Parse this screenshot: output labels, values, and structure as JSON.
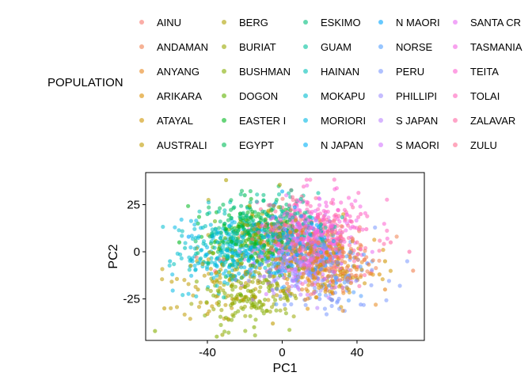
{
  "chart_data": {
    "type": "scatter",
    "title": "",
    "xlabel": "PC1",
    "ylabel": "PC2",
    "xlim": [
      -73,
      76
    ],
    "ylim": [
      -47,
      42
    ],
    "xticks": [
      -40,
      0,
      40
    ],
    "yticks": [
      -25,
      0,
      25
    ],
    "grid": false,
    "legend_title": "POPULATION",
    "legend_position": "top",
    "series": [
      {
        "name": "AINU",
        "color": "#F8766D"
      },
      {
        "name": "ANDAMAN",
        "color": "#F07F4E"
      },
      {
        "name": "ANYANG",
        "color": "#E7861B"
      },
      {
        "name": "ARIKARA",
        "color": "#DB8E00"
      },
      {
        "name": "ATAYAL",
        "color": "#CF9400"
      },
      {
        "name": "AUSTRALI",
        "color": "#C09B00"
      },
      {
        "name": "BERG",
        "color": "#AFA100"
      },
      {
        "name": "BURIAT",
        "color": "#9AA800"
      },
      {
        "name": "BUSHMAN",
        "color": "#83AD00"
      },
      {
        "name": "DOGON",
        "color": "#5EB300"
      },
      {
        "name": "EASTER I",
        "color": "#00B81F"
      },
      {
        "name": "EGYPT",
        "color": "#00BC59"
      },
      {
        "name": "ESKIMO",
        "color": "#00BE7D"
      },
      {
        "name": "GUAM",
        "color": "#00C19C"
      },
      {
        "name": "HAINAN",
        "color": "#00C0B8"
      },
      {
        "name": "MOKAPU",
        "color": "#00BDD0"
      },
      {
        "name": "MORIORI",
        "color": "#00B8E5"
      },
      {
        "name": "N JAPAN",
        "color": "#00B0F6"
      },
      {
        "name": "N MAORI",
        "color": "#00A5FF"
      },
      {
        "name": "NORSE",
        "color": "#529EFF"
      },
      {
        "name": "PERU",
        "color": "#7997FF"
      },
      {
        "name": "PHILLIPI",
        "color": "#9E8FFF"
      },
      {
        "name": "S JAPAN",
        "color": "#BB83FF"
      },
      {
        "name": "S MAORI",
        "color": "#D376FF"
      },
      {
        "name": "SANTA CR",
        "color": "#E76BF3"
      },
      {
        "name": "TASMANIA",
        "color": "#F464E2"
      },
      {
        "name": "TEITA",
        "color": "#FD61D1"
      },
      {
        "name": "TOLAI",
        "color": "#FF62BC"
      },
      {
        "name": "ZALAVAR",
        "color": "#FF67A4"
      },
      {
        "name": "ZULU",
        "color": "#FF6C91"
      }
    ],
    "points": [
      {
        "group": "EGYPT",
        "x": -45,
        "y": 15
      },
      {
        "group": "BERG",
        "x": -30,
        "y": 38
      },
      {
        "group": "EASTER I",
        "x": -55,
        "y": 5
      },
      {
        "group": "HAINAN",
        "x": -52,
        "y": 2
      },
      {
        "group": "MOKAPU",
        "x": -60,
        "y": -5
      },
      {
        "group": "BUSHMAN",
        "x": -68,
        "y": -42
      },
      {
        "group": "AUSTRALI",
        "x": -63,
        "y": -30
      },
      {
        "group": "BUSHMAN",
        "x": -35,
        "y": -45
      },
      {
        "group": "BURIAT",
        "x": -32,
        "y": -44
      },
      {
        "group": "AUSTRALI",
        "x": -40,
        "y": -33
      },
      {
        "group": "BUSHMAN",
        "x": -15,
        "y": -40
      },
      {
        "group": "AUSTRALI",
        "x": -5,
        "y": -38
      },
      {
        "group": "ZALAVAR",
        "x": 68,
        "y": 0
      },
      {
        "group": "ANDAMAN",
        "x": 70,
        "y": -10
      },
      {
        "group": "ZALAVAR",
        "x": 58,
        "y": 5
      },
      {
        "group": "TOLAI",
        "x": 42,
        "y": 20
      },
      {
        "group": "TOLAI",
        "x": 45,
        "y": 12
      },
      {
        "group": "PERU",
        "x": 42,
        "y": -28
      },
      {
        "group": "PERU",
        "x": 20,
        "y": -25
      },
      {
        "group": "N JAPAN",
        "x": 0,
        "y": 32
      },
      {
        "group": "EGYPT",
        "x": -20,
        "y": 30
      },
      {
        "group": "GUAM",
        "x": 10,
        "y": 28
      },
      {
        "group": "ESKIMO",
        "x": -10,
        "y": 27
      },
      {
        "group": "S MAORI",
        "x": 20,
        "y": 28
      },
      {
        "group": "TEITA",
        "x": 30,
        "y": 22
      },
      {
        "group": "DOGON",
        "x": -22,
        "y": -23
      },
      {
        "group": "BURIAT",
        "x": -10,
        "y": -28
      },
      {
        "group": "ARIKARA",
        "x": 52,
        "y": -12
      },
      {
        "group": "ATAYAL",
        "x": 55,
        "y": -5
      },
      {
        "group": "MORIORI",
        "x": -48,
        "y": -5
      },
      {
        "group": "N MAORI",
        "x": -50,
        "y": 8
      },
      {
        "group": "ESKIMO",
        "x": -40,
        "y": 20
      },
      {
        "group": "AUSTRALI",
        "x": -45,
        "y": -20
      },
      {
        "group": "BERG",
        "x": -35,
        "y": -15
      },
      {
        "group": "ANYANG",
        "x": 55,
        "y": -20
      },
      {
        "group": "ZULU",
        "x": 40,
        "y": 5
      },
      {
        "group": "SANTA CR",
        "x": 30,
        "y": 10
      },
      {
        "group": "PHILLIPI",
        "x": 35,
        "y": -15
      },
      {
        "group": "S JAPAN",
        "x": 10,
        "y": -5
      },
      {
        "group": "NORSE",
        "x": 25,
        "y": -18
      }
    ],
    "approx_point_count": 2500
  }
}
